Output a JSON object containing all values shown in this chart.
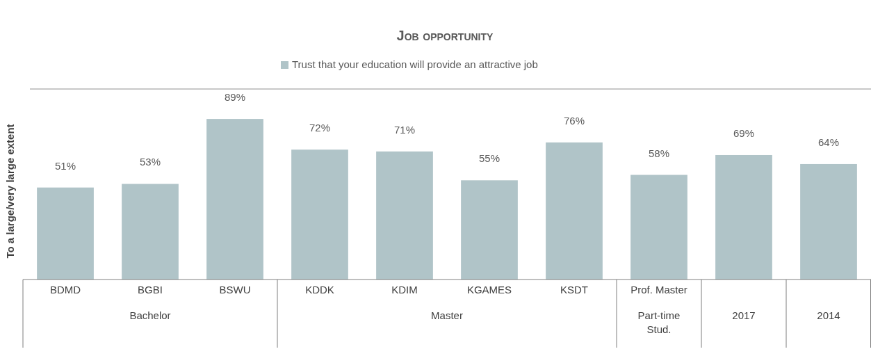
{
  "chart_data": {
    "type": "bar",
    "title": "Job opportunity",
    "ylabel": "To a large/very large extent",
    "categories": [
      "BDMD",
      "BGBI",
      "BSWU",
      "KDDK",
      "KDIM",
      "KGAMES",
      "KSDT",
      "Prof. Master",
      null,
      null
    ],
    "series": [
      {
        "name": "Trust that your education will provide an attractive job",
        "color": "#b0c4c8",
        "values": [
          51,
          53,
          89,
          72,
          71,
          55,
          76,
          58,
          69,
          64
        ],
        "value_labels": [
          "51%",
          "53%",
          "89%",
          "72%",
          "71%",
          "55%",
          "76%",
          "58%",
          "69%",
          "64%"
        ]
      }
    ],
    "legend": "top",
    "annotations": [
      "Bachelor",
      "Master",
      "Part-time Stud.",
      "2017",
      "2014"
    ]
  }
}
